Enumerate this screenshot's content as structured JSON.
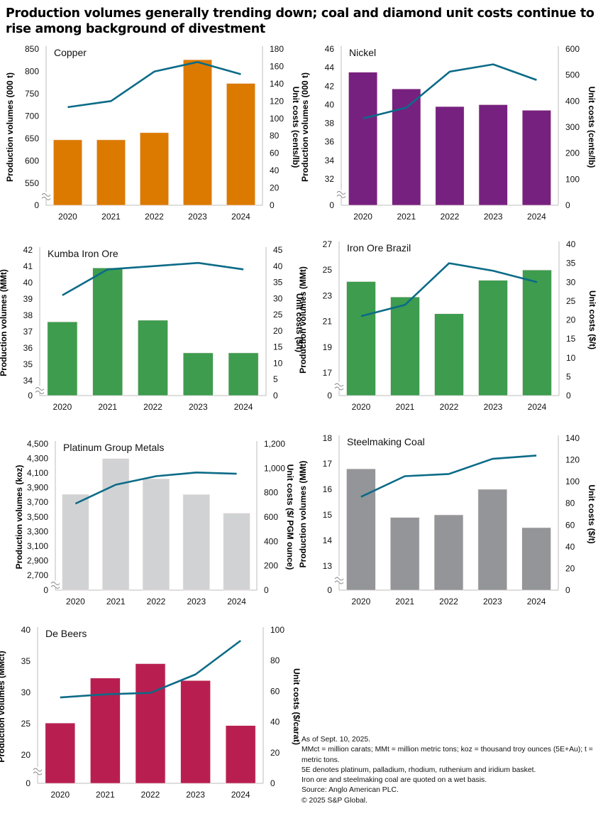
{
  "title": "Production volumes generally trending down; coal and diamond unit costs continue to rise among background of divestment",
  "notes": [
    "As of Sept. 10, 2025.",
    "MMct = million carats; MMt = million metric tons; koz = thousand troy ounces (5E+Au); t = metric tons.",
    "5E denotes platinum, palladium, rhodium, ruthenium and iridium basket.",
    "Iron ore and steelmaking coal are quoted on a wet basis.",
    "Source: Anglo American PLC.",
    "© 2025 S&P Global."
  ],
  "line_color": "#0B6B87",
  "chart_data": [
    {
      "type": "bar+line",
      "title": "Copper",
      "categories": [
        "2020",
        "2021",
        "2022",
        "2023",
        "2024"
      ],
      "bar_color": "#DC7A00",
      "series": [
        {
          "name": "Production volumes",
          "axis": "left",
          "type": "bar",
          "values": [
            647,
            647,
            663,
            826,
            773
          ]
        },
        {
          "name": "Unit costs",
          "axis": "right",
          "type": "line",
          "values": [
            113,
            120,
            154,
            165,
            151
          ]
        }
      ],
      "ylabel": "Production volumes (000 t)",
      "y2label": "Unit costs (cents/lb)",
      "ylim": [
        550,
        850
      ],
      "yticks": [
        550,
        600,
        650,
        700,
        750,
        800,
        850
      ],
      "y_break": true,
      "y2lim": [
        0,
        180
      ],
      "y2ticks": [
        0,
        20,
        40,
        60,
        80,
        100,
        120,
        140,
        160,
        180
      ],
      "ytick_labels": [
        "0",
        "550",
        "600",
        "650",
        "700",
        "750",
        "800",
        "850"
      ],
      "y2tick_labels": [
        "0",
        "20",
        "40",
        "60",
        "80",
        "100",
        "120",
        "140",
        "160",
        "180"
      ]
    },
    {
      "type": "bar+line",
      "title": "Nickel",
      "categories": [
        "2020",
        "2021",
        "2022",
        "2023",
        "2024"
      ],
      "bar_color": "#76217F",
      "series": [
        {
          "name": "Production volumes",
          "axis": "left",
          "type": "bar",
          "values": [
            43.5,
            41.7,
            39.8,
            40.0,
            39.4
          ]
        },
        {
          "name": "Unit costs",
          "axis": "right",
          "type": "line",
          "values": [
            333,
            375,
            513,
            541,
            481
          ]
        }
      ],
      "ylabel": "Production volumes (000 t)",
      "y2label": "Unit costs (cents/lb)",
      "ylim": [
        32,
        46
      ],
      "yticks": [
        32,
        34,
        36,
        38,
        40,
        42,
        44,
        46
      ],
      "y_break": true,
      "y2lim": [
        0,
        600
      ],
      "y2ticks": [
        0,
        100,
        200,
        300,
        400,
        500,
        600
      ],
      "ytick_labels": [
        "0",
        "32",
        "34",
        "36",
        "38",
        "40",
        "42",
        "44",
        "46"
      ],
      "y2tick_labels": [
        "0",
        "100",
        "200",
        "300",
        "400",
        "500",
        "600"
      ]
    },
    {
      "type": "bar+line",
      "title": "Kumba Iron Ore",
      "categories": [
        "2020",
        "2021",
        "2022",
        "2023",
        "2024"
      ],
      "bar_color": "#3D9C4E",
      "series": [
        {
          "name": "Production volumes",
          "axis": "left",
          "type": "bar",
          "values": [
            37.6,
            40.9,
            37.7,
            35.7,
            35.7
          ]
        },
        {
          "name": "Unit costs",
          "axis": "right",
          "type": "line",
          "values": [
            31,
            39,
            40,
            41,
            39
          ]
        }
      ],
      "ylabel": "Production volumes (MMt)",
      "y2label": "Unit costs ($/t)",
      "ylim": [
        34,
        42
      ],
      "yticks": [
        34,
        35,
        36,
        37,
        38,
        39,
        40,
        41,
        42
      ],
      "y_break": true,
      "y2lim": [
        0,
        45
      ],
      "y2ticks": [
        0,
        5,
        10,
        15,
        20,
        25,
        30,
        35,
        40,
        45
      ],
      "ytick_labels": [
        "0",
        "34",
        "35",
        "36",
        "37",
        "38",
        "39",
        "40",
        "41",
        "42"
      ],
      "y2tick_labels": [
        "0",
        "5",
        "10",
        "15",
        "20",
        "25",
        "30",
        "35",
        "40",
        "45"
      ]
    },
    {
      "type": "bar+line",
      "title": "Iron Ore Brazil",
      "categories": [
        "2020",
        "2021",
        "2022",
        "2023",
        "2024"
      ],
      "bar_color": "#3D9C4E",
      "series": [
        {
          "name": "Production volumes",
          "axis": "left",
          "type": "bar",
          "values": [
            24.1,
            22.9,
            21.6,
            24.2,
            25.0
          ]
        },
        {
          "name": "Unit costs",
          "axis": "right",
          "type": "line",
          "values": [
            21,
            24,
            35,
            33,
            30
          ]
        }
      ],
      "ylabel": "Production volumes (MMt)",
      "y2label": "Unit costs ($/t)",
      "ylim": [
        16,
        27
      ],
      "yticks": [
        17,
        19,
        21,
        23,
        25,
        27
      ],
      "y_break": true,
      "y2lim": [
        0,
        40
      ],
      "y2ticks": [
        0,
        5,
        10,
        15,
        20,
        25,
        30,
        35,
        40
      ],
      "ytick_labels": [
        "0",
        "17",
        "19",
        "21",
        "23",
        "25",
        "27"
      ],
      "y2tick_labels": [
        "0",
        "5",
        "10",
        "15",
        "20",
        "25",
        "30",
        "35",
        "40"
      ]
    },
    {
      "type": "bar+line",
      "title": "Platinum Group Metals",
      "categories": [
        "2020",
        "2021",
        "2022",
        "2023",
        "2024"
      ],
      "bar_color": "#D1D2D4",
      "series": [
        {
          "name": "Production volumes",
          "axis": "left",
          "type": "bar",
          "values": [
            3808,
            4298,
            4021,
            3806,
            3550
          ]
        },
        {
          "name": "Unit costs",
          "axis": "right",
          "type": "line",
          "values": [
            710,
            865,
            935,
            965,
            955
          ]
        }
      ],
      "ylabel": "Production volumes (koz)",
      "y2label": "Unit costs ($/ PGM ounce)",
      "ylim": [
        2700,
        4500
      ],
      "yticks": [
        2700,
        2900,
        3100,
        3300,
        3500,
        3700,
        3900,
        4100,
        4300,
        4500
      ],
      "y_break": true,
      "y2lim": [
        0,
        1200
      ],
      "y2ticks": [
        0,
        200,
        400,
        600,
        800,
        1000,
        1200
      ],
      "ytick_labels": [
        "0",
        "2,700",
        "2,900",
        "3,100",
        "3,300",
        "3,500",
        "3,700",
        "3,900",
        "4,100",
        "4,300",
        "4,500"
      ],
      "y2tick_labels": [
        "0",
        "200",
        "400",
        "600",
        "800",
        "1,000",
        "1,200"
      ]
    },
    {
      "type": "bar+line",
      "title": "Steelmaking Coal",
      "categories": [
        "2020",
        "2021",
        "2022",
        "2023",
        "2024"
      ],
      "bar_color": "#939598",
      "series": [
        {
          "name": "Production volumes",
          "axis": "left",
          "type": "bar",
          "values": [
            16.8,
            14.9,
            15.0,
            16.0,
            14.5
          ]
        },
        {
          "name": "Unit costs",
          "axis": "right",
          "type": "line",
          "values": [
            86,
            105,
            107,
            121,
            124
          ]
        }
      ],
      "ylabel": "Production volumes (MMt)",
      "y2label": "Unit costs ($/t)",
      "ylim": [
        12,
        18
      ],
      "yticks": [
        13,
        14,
        15,
        16,
        17,
        18
      ],
      "y_break": true,
      "y2lim": [
        0,
        140
      ],
      "y2ticks": [
        0,
        20,
        40,
        60,
        80,
        100,
        120,
        140
      ],
      "ytick_labels": [
        "0",
        "13",
        "14",
        "15",
        "16",
        "17",
        "18"
      ],
      "y2tick_labels": [
        "0",
        "20",
        "40",
        "60",
        "80",
        "100",
        "120",
        "140"
      ]
    },
    {
      "type": "bar+line",
      "title": "De Beers",
      "categories": [
        "2020",
        "2021",
        "2022",
        "2023",
        "2024"
      ],
      "bar_color": "#B81F50",
      "series": [
        {
          "name": "Production volumes",
          "axis": "left",
          "type": "bar",
          "values": [
            25.1,
            32.3,
            34.6,
            31.9,
            24.7
          ]
        },
        {
          "name": "Unit costs",
          "axis": "right",
          "type": "line",
          "values": [
            56,
            58,
            59,
            71,
            93
          ]
        }
      ],
      "ylabel": "Production volumes (MMct)",
      "y2label": "Unit costs ($/carat)",
      "ylim": [
        15,
        40
      ],
      "yticks": [
        20,
        25,
        30,
        35,
        40
      ],
      "y_break": true,
      "y2lim": [
        0,
        100
      ],
      "y2ticks": [
        0,
        20,
        40,
        60,
        80,
        100
      ],
      "ytick_labels": [
        "0",
        "20",
        "25",
        "30",
        "35",
        "40"
      ],
      "y2tick_labels": [
        "0",
        "20",
        "40",
        "60",
        "80",
        "100"
      ]
    }
  ]
}
